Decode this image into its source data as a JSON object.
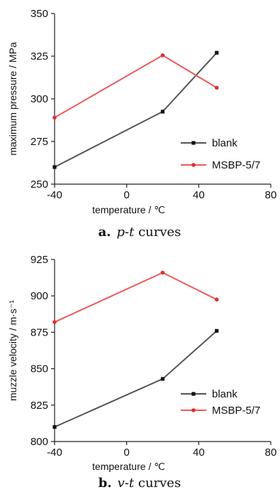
{
  "colors": {
    "blank": "#555555",
    "msbp": "#ef5a5a",
    "axis": "#222222"
  },
  "chart_data": [
    {
      "id": "pt",
      "type": "line",
      "caption": {
        "letter": "a.",
        "var": "p-t",
        "rest": " curves"
      },
      "xlabel": "temperature / ℃",
      "ylabel": "maximum pressure / MPa",
      "xlim": [
        -40,
        80
      ],
      "ylim": [
        250,
        350
      ],
      "xticks": [
        -40,
        0,
        40,
        80
      ],
      "yticks": [
        250,
        275,
        300,
        325,
        350
      ],
      "legend_position": "center-right",
      "series": [
        {
          "name": "blank",
          "marker": "square",
          "x": [
            -40,
            20,
            50
          ],
          "y": [
            260,
            292.5,
            327
          ]
        },
        {
          "name": "MSBP-5/7",
          "marker": "circle",
          "x": [
            -40,
            20,
            50
          ],
          "y": [
            289,
            325.5,
            306.5
          ]
        }
      ]
    },
    {
      "id": "vt",
      "type": "line",
      "caption": {
        "letter": "b.",
        "var": "v-t",
        "rest": " curves"
      },
      "xlabel": "temperature / ℃",
      "ylabel": "muzzle velocity / m·s⁻¹",
      "xlim": [
        -40,
        80
      ],
      "ylim": [
        800,
        925
      ],
      "xticks": [
        -40,
        0,
        40,
        80
      ],
      "yticks": [
        800,
        825,
        850,
        875,
        900,
        925
      ],
      "legend_position": "bottom-right",
      "series": [
        {
          "name": "blank",
          "marker": "square",
          "x": [
            -40,
            20,
            50
          ],
          "y": [
            810,
            843,
            876
          ]
        },
        {
          "name": "MSBP-5/7",
          "marker": "circle",
          "x": [
            -40,
            20,
            50
          ],
          "y": [
            882,
            916,
            897.5
          ]
        }
      ]
    }
  ]
}
